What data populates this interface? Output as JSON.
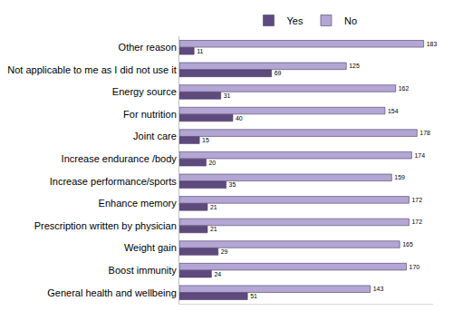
{
  "chart_data": {
    "type": "bar",
    "orientation": "horizontal",
    "categories": [
      "Other reason",
      "Not applicable to me as I did not use it",
      "Energy source",
      "For nutrition",
      "Joint care",
      "Increase endurance /body",
      "Increase performance/sports",
      "Enhance memory",
      "Prescription written by physician",
      "Weight gain",
      "Boost immunity",
      "General health and wellbeing"
    ],
    "series": [
      {
        "name": "No",
        "color": "#b3a6d4",
        "values": [
          183,
          125,
          162,
          154,
          178,
          174,
          159,
          172,
          172,
          165,
          170,
          143
        ]
      },
      {
        "name": "Yes",
        "color": "#5f4a7e",
        "values": [
          11,
          69,
          31,
          40,
          15,
          20,
          35,
          21,
          21,
          29,
          24,
          51
        ]
      }
    ],
    "xlim": [
      0,
      190
    ],
    "xticks": [],
    "tick_labels": "y",
    "grid": false,
    "legend": "top",
    "data_labels": true
  }
}
